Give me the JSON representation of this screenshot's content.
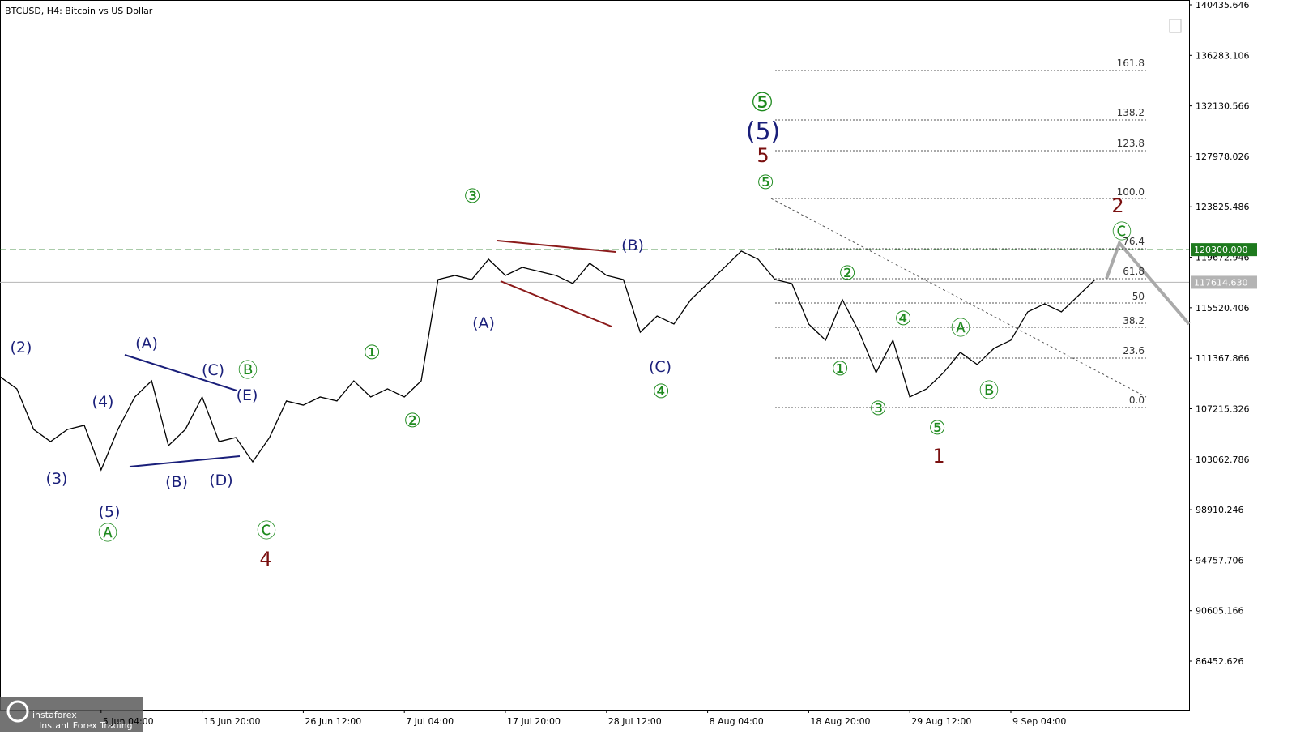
{
  "title": "BTCUSD, H4:  Bitcoin vs US Dollar",
  "logo": {
    "name": "instaforex",
    "tagline": "Instant Forex Trading"
  },
  "chart_data": {
    "type": "line",
    "categories": [
      null,
      null,
      null,
      null,
      null,
      null,
      "5 Jun 04:00",
      null,
      null,
      null,
      null,
      null,
      "15 Jun 20:00",
      null,
      null,
      null,
      null,
      null,
      "26 Jun 12:00",
      null,
      null,
      null,
      null,
      null,
      "7 Jul 04:00",
      null,
      null,
      null,
      null,
      null,
      "17 Jul 20:00",
      null,
      null,
      null,
      null,
      null,
      "28 Jul 12:00",
      null,
      null,
      null,
      null,
      null,
      "8 Aug 04:00",
      null,
      null,
      null,
      null,
      null,
      "18 Aug 20:00",
      null,
      null,
      null,
      null,
      null,
      "29 Aug 12:00",
      null,
      null,
      null,
      null,
      null,
      "9 Sep 04:00",
      null,
      null,
      null,
      null,
      null
    ],
    "series": [
      {
        "name": "BTCUSD",
        "color": "#000000",
        "values": [
          109850,
          108850,
          105510,
          104510,
          105510,
          105850,
          102180,
          105510,
          108180,
          109510,
          104180,
          105510,
          108180,
          104510,
          104850,
          102850,
          104850,
          107850,
          107510,
          108180,
          107850,
          109510,
          108180,
          108850,
          108180,
          109510,
          117840,
          118180,
          117840,
          119510,
          118180,
          118840,
          118510,
          118180,
          117510,
          119180,
          118180,
          117840,
          113510,
          114840,
          114180,
          116180,
          117510,
          118840,
          120180,
          119510,
          117840,
          117510,
          114180,
          112850,
          116180,
          113510,
          110180,
          112850,
          108180,
          108850,
          110180,
          111850,
          110850,
          112180,
          112850,
          115180,
          115840,
          115180,
          116510,
          117840
        ]
      }
    ],
    "ylim": [
      82454,
      140836
    ],
    "yticks": [
      140435.646,
      136283.106,
      132130.566,
      127978.026,
      123825.486,
      119672.946,
      115520.406,
      111367.866,
      107215.326,
      103062.786,
      98910.246,
      94757.706,
      90605.166,
      86452.626
    ],
    "price_lines": [
      {
        "value": 120300,
        "label": "120300.000",
        "color": "#1e7a1e"
      },
      {
        "value": 117614.63,
        "label": "117614.630",
        "color": "#b4b4b4"
      }
    ],
    "fib_levels": [
      "161.8",
      "138.2",
      "123.8",
      "100.0",
      "76.4",
      "61.8",
      "50",
      "38.2",
      "23.6",
      "0.0"
    ],
    "annotations": [
      "(2)",
      "(3)",
      "(4)",
      "(5)",
      "(A)",
      "(B)",
      "(C)",
      "(D)",
      "(E)",
      "(A)",
      "(B)",
      "(C)",
      "(5)",
      "Ⓐ",
      "Ⓑ",
      "Ⓒ",
      "①",
      "②",
      "③",
      "④",
      "⑤",
      "⑤",
      "①",
      "②",
      "④",
      "③",
      "⑤",
      "Ⓐ",
      "Ⓑ",
      "Ⓒ",
      "4",
      "5",
      "1",
      "2"
    ]
  }
}
